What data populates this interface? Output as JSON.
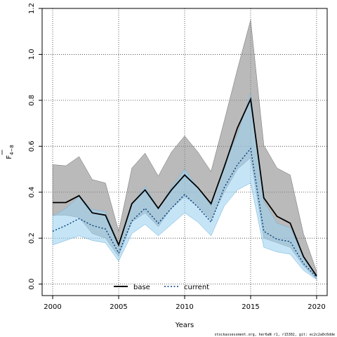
{
  "chart_data": {
    "type": "line",
    "xlabel": "Years",
    "ylabel": "F",
    "ylabel_sub": "4−8",
    "xlim": [
      1999.2,
      2020.8
    ],
    "ylim": [
      -0.05,
      1.2
    ],
    "x_ticks": [
      2000,
      2005,
      2010,
      2015,
      2020
    ],
    "y_ticks": [
      0.0,
      0.2,
      0.4,
      0.6,
      0.8,
      1.0,
      1.2
    ],
    "grid": true,
    "legend_position": "bottom-center",
    "x": [
      2000,
      2001,
      2002,
      2003,
      2004,
      2005,
      2006,
      2007,
      2008,
      2009,
      2010,
      2011,
      2012,
      2013,
      2014,
      2015,
      2016,
      2017,
      2018,
      2019,
      2020
    ],
    "series": [
      {
        "name": "base",
        "color": "#000000",
        "line_style": "solid",
        "band_color": "#8c8c8c",
        "values": [
          0.355,
          0.355,
          0.385,
          0.31,
          0.3,
          0.17,
          0.35,
          0.41,
          0.33,
          0.41,
          0.475,
          0.42,
          0.35,
          0.51,
          0.68,
          0.805,
          0.375,
          0.295,
          0.265,
          0.12,
          0.035
        ],
        "lower": [
          0.3,
          0.3,
          0.29,
          0.22,
          0.2,
          0.12,
          0.27,
          0.31,
          0.25,
          0.33,
          0.38,
          0.34,
          0.28,
          0.4,
          0.5,
          0.55,
          0.2,
          0.18,
          0.16,
          0.08,
          0.02
        ],
        "upper": [
          0.52,
          0.515,
          0.555,
          0.455,
          0.44,
          0.23,
          0.505,
          0.57,
          0.47,
          0.575,
          0.645,
          0.575,
          0.49,
          0.71,
          0.935,
          1.15,
          0.605,
          0.505,
          0.475,
          0.22,
          0.055
        ]
      },
      {
        "name": "current",
        "color": "#063a7a",
        "line_style": "dotted",
        "band_color": "#9fd3f2",
        "values": [
          0.23,
          0.255,
          0.285,
          0.255,
          0.24,
          0.135,
          0.275,
          0.33,
          0.265,
          0.33,
          0.39,
          0.335,
          0.27,
          0.42,
          0.52,
          0.59,
          0.23,
          0.195,
          0.185,
          0.09,
          0.03
        ],
        "lower": [
          0.17,
          0.19,
          0.21,
          0.19,
          0.18,
          0.1,
          0.22,
          0.26,
          0.21,
          0.26,
          0.31,
          0.27,
          0.21,
          0.34,
          0.41,
          0.44,
          0.16,
          0.14,
          0.13,
          0.06,
          0.02
        ],
        "upper": [
          0.295,
          0.33,
          0.38,
          0.325,
          0.315,
          0.175,
          0.345,
          0.425,
          0.33,
          0.42,
          0.5,
          0.42,
          0.34,
          0.52,
          0.65,
          0.83,
          0.36,
          0.265,
          0.245,
          0.12,
          0.04
        ]
      }
    ],
    "footer": "stockassessment.org, her6aN r1, r15302, git: ec2c2a0c6dde"
  }
}
